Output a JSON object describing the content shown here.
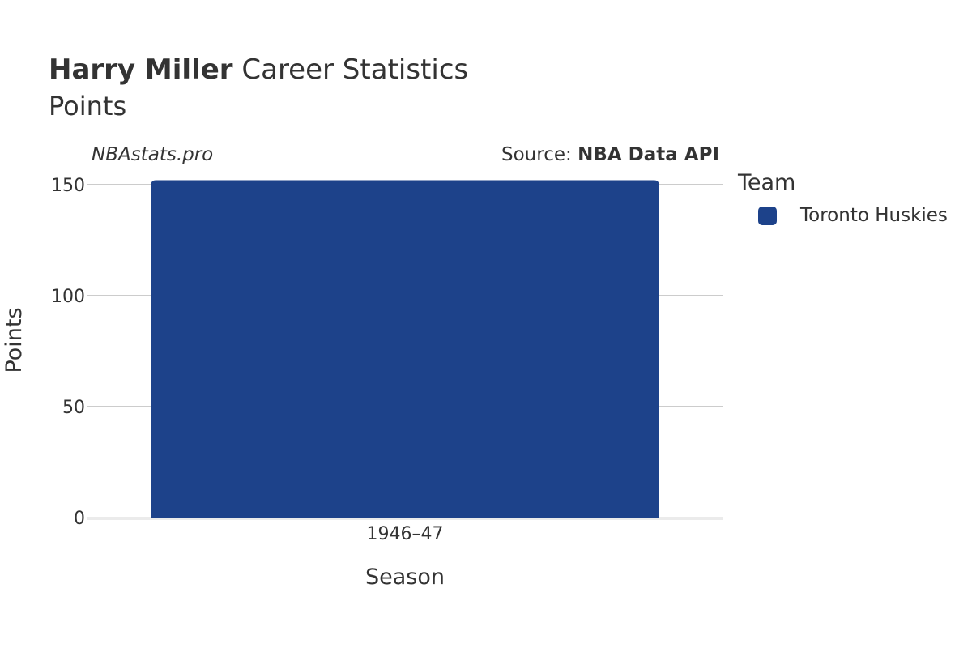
{
  "header": {
    "player_name": "Harry Miller",
    "title_rest": " Career Statistics",
    "subtitle": "Points"
  },
  "watermark": "NBAstats.pro",
  "source": {
    "prefix": "Source: ",
    "name": "NBA Data API"
  },
  "legend": {
    "title": "Team",
    "items": [
      {
        "label": "Toronto Huskies",
        "color": "#1d428a"
      }
    ]
  },
  "chart_data": {
    "type": "bar",
    "categories": [
      "1946–47"
    ],
    "series": [
      {
        "name": "Toronto Huskies",
        "values": [
          152
        ],
        "color": "#1d428a"
      }
    ],
    "xlabel": "Season",
    "ylabel": "Points",
    "ylim": [
      0,
      150
    ],
    "yticks": [
      0,
      50,
      100,
      150
    ],
    "grid": true,
    "legend_position": "right"
  }
}
